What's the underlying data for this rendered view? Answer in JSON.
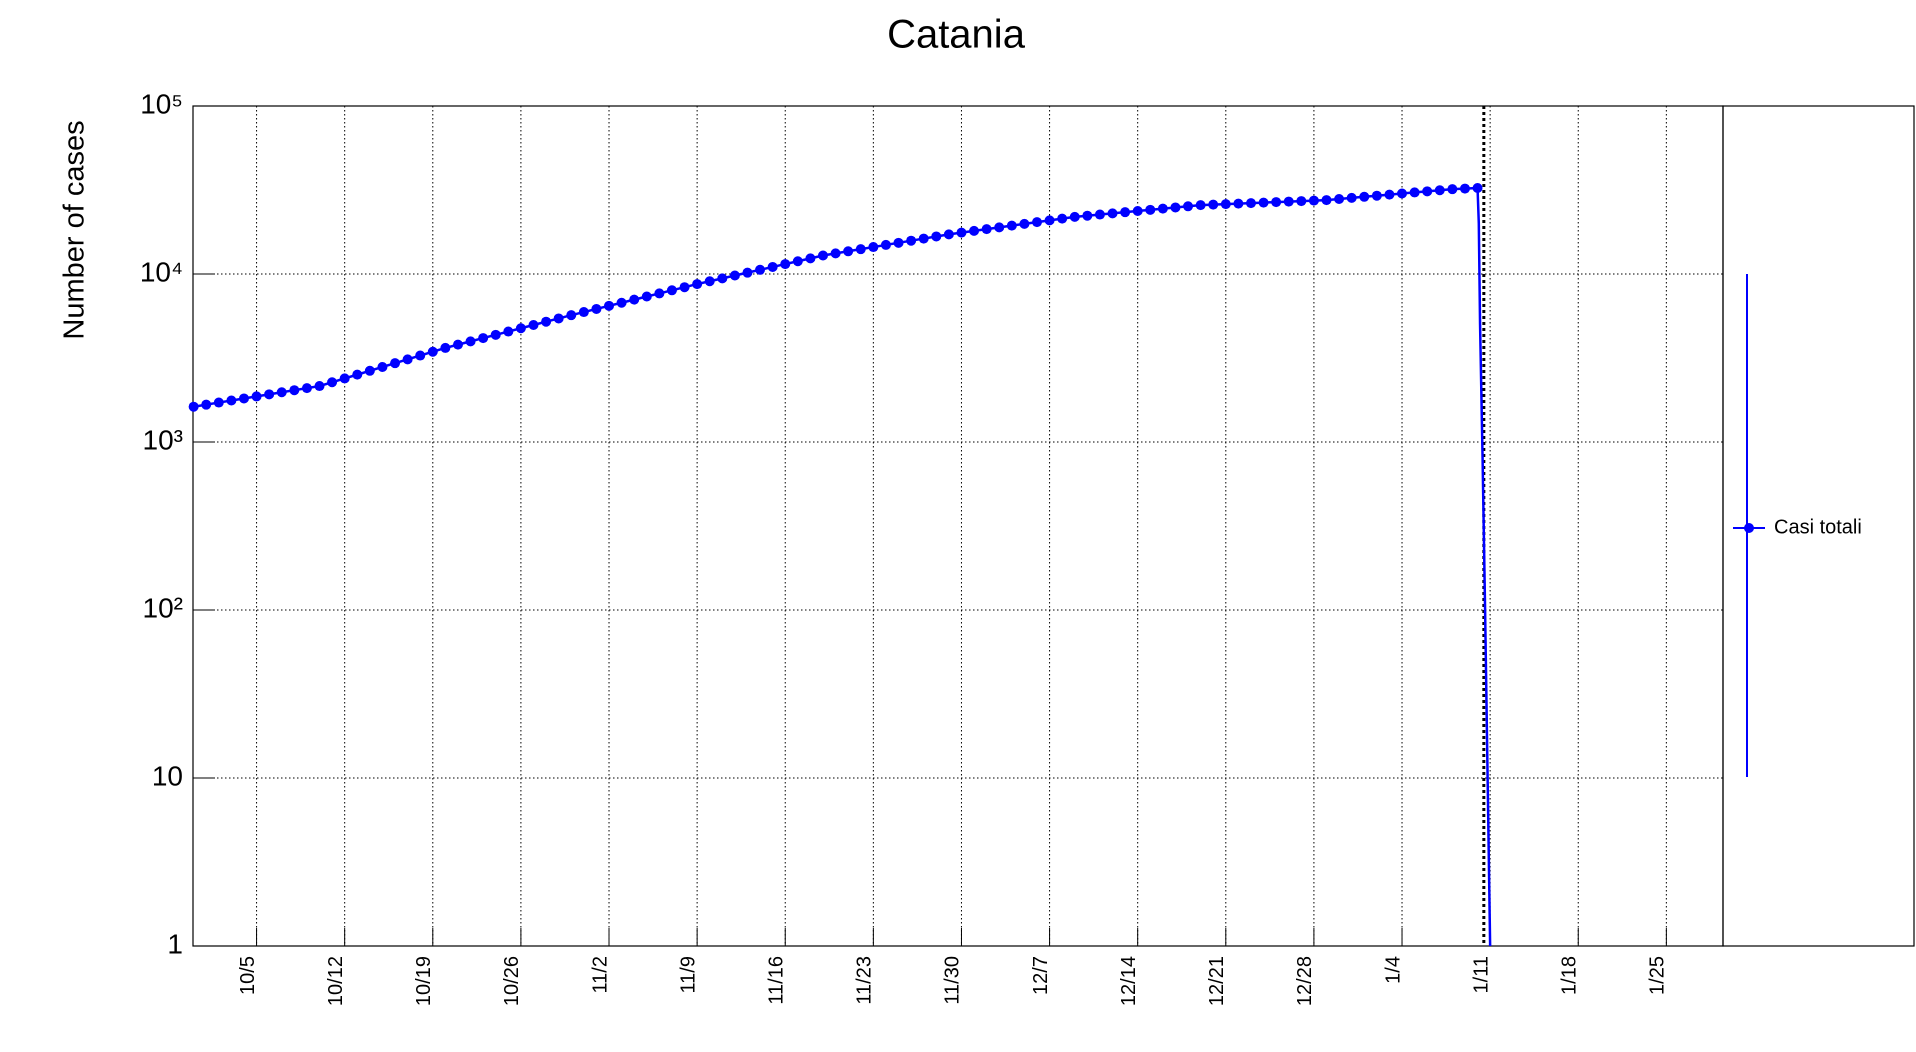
{
  "chart_data": {
    "type": "line",
    "title": "Catania",
    "y_label": "Number of cases",
    "log_y": true,
    "grid": true,
    "xlim": [
      -5.05,
      116.5
    ],
    "ylim": [
      1,
      100000
    ],
    "yticks": [
      1,
      10,
      {
        "value": 100,
        "label": "10²"
      },
      {
        "value": 1000,
        "label": "10³"
      },
      {
        "value": 10000,
        "label": "10⁴"
      },
      {
        "value": 100000,
        "label": "10⁵"
      }
    ],
    "xticks": [
      {
        "value": 0,
        "label": "10/5"
      },
      {
        "value": 7,
        "label": "10/12"
      },
      {
        "value": 14,
        "label": "10/19"
      },
      {
        "value": 21,
        "label": "10/26"
      },
      {
        "value": 28,
        "label": "11/2"
      },
      {
        "value": 35,
        "label": "11/9"
      },
      {
        "value": 42,
        "label": "11/16"
      },
      {
        "value": 49,
        "label": "11/23"
      },
      {
        "value": 56,
        "label": "11/30"
      },
      {
        "value": 63,
        "label": "12/7"
      },
      {
        "value": 70,
        "label": "12/14"
      },
      {
        "value": 77,
        "label": "12/21"
      },
      {
        "value": 84,
        "label": "12/28"
      },
      {
        "value": 91,
        "label": "1/4"
      },
      {
        "value": 98,
        "label": "1/11"
      },
      {
        "value": 105,
        "label": "1/18"
      },
      {
        "value": 112,
        "label": "1/25"
      }
    ],
    "vline": 97.5,
    "series": [
      {
        "name": "Casi totali",
        "color": "#0000ff",
        "markers": true,
        "x": [
          -5,
          -4,
          -3,
          -2,
          -1,
          0,
          1,
          2,
          3,
          4,
          5,
          6,
          7,
          8,
          9,
          10,
          11,
          12,
          13,
          14,
          15,
          16,
          17,
          18,
          19,
          20,
          21,
          22,
          23,
          24,
          25,
          26,
          27,
          28,
          29,
          30,
          31,
          32,
          33,
          34,
          35,
          36,
          37,
          38,
          39,
          40,
          41,
          42,
          43,
          44,
          45,
          46,
          47,
          48,
          49,
          50,
          51,
          52,
          53,
          54,
          55,
          56,
          57,
          58,
          59,
          60,
          61,
          62,
          63,
          64,
          65,
          66,
          67,
          68,
          69,
          70,
          71,
          72,
          73,
          74,
          75,
          76,
          77,
          78,
          79,
          80,
          81,
          82,
          83,
          84,
          85,
          86,
          87,
          88,
          89,
          90,
          91,
          92,
          93,
          94,
          95,
          96,
          97
        ],
        "values": [
          1622,
          1668,
          1717,
          1766,
          1816,
          1868,
          1922,
          1977,
          2034,
          2092,
          2153,
          2268,
          2390,
          2518,
          2653,
          2796,
          2946,
          3104,
          3270,
          3446,
          3631,
          3798,
          3972,
          4154,
          4345,
          4544,
          4753,
          4971,
          5200,
          5438,
          5689,
          5936,
          6194,
          6463,
          6745,
          7038,
          7345,
          7664,
          7998,
          8345,
          8710,
          9057,
          9419,
          9795,
          10186,
          10593,
          11015,
          11455,
          11912,
          12388,
          12882,
          13262,
          13653,
          14055,
          14469,
          14894,
          15333,
          15785,
          16250,
          16728,
          17219,
          17637,
          18064,
          18501,
          18950,
          19409,
          19879,
          20360,
          20853,
          21358,
          21878,
          22233,
          22594,
          22961,
          23335,
          23714,
          24099,
          24491,
          24889,
          25293,
          25704,
          25882,
          26062,
          26242,
          26424,
          26607,
          26792,
          26977,
          27164,
          27353,
          27542,
          27958,
          28379,
          28808,
          29242,
          29684,
          30131,
          30586,
          31046,
          31515,
          31989,
          32248,
          32509
        ]
      },
      {
        "color": "#0000ff",
        "markers": false,
        "x": [
          97,
          97.1,
          97.2,
          97.4,
          97.6,
          97.8,
          98.0
        ],
        "values": [
          32509,
          20000,
          5000,
          800,
          100,
          10,
          1
        ]
      }
    ]
  }
}
